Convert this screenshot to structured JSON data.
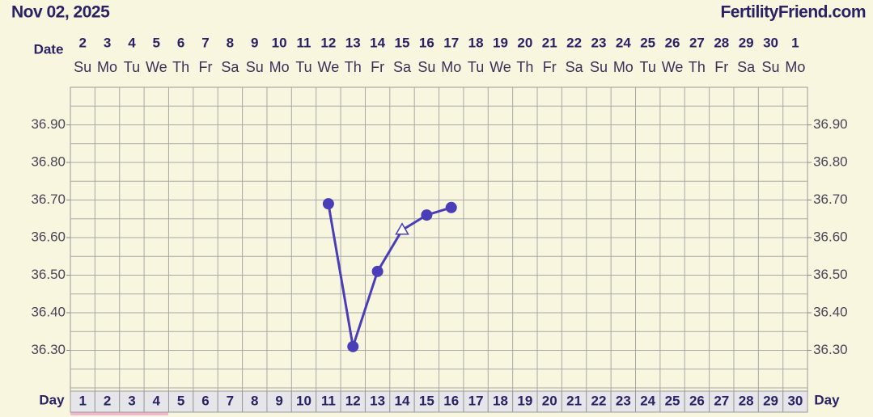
{
  "title": "Nov 02, 2025",
  "site": "FertilityFriend.com",
  "chart_data": {
    "type": "line",
    "date_label": "Date",
    "dates": [
      2,
      3,
      4,
      5,
      6,
      7,
      8,
      9,
      10,
      11,
      12,
      13,
      14,
      15,
      16,
      17,
      18,
      19,
      20,
      21,
      22,
      23,
      24,
      25,
      26,
      27,
      28,
      29,
      30,
      1
    ],
    "weekdays": [
      "Su",
      "Mo",
      "Tu",
      "We",
      "Th",
      "Fr",
      "Sa",
      "Su",
      "Mo",
      "Tu",
      "We",
      "Th",
      "Fr",
      "Sa",
      "Su",
      "Mo",
      "Tu",
      "We",
      "Th",
      "Fr",
      "Sa",
      "Su",
      "Mo",
      "Tu",
      "We",
      "Th",
      "Fr",
      "Sa",
      "Su",
      "Mo"
    ],
    "day_label": "Day",
    "categories": [
      1,
      2,
      3,
      4,
      5,
      6,
      7,
      8,
      9,
      10,
      11,
      12,
      13,
      14,
      15,
      16,
      17,
      18,
      19,
      20,
      21,
      22,
      23,
      24,
      25,
      26,
      27,
      28,
      29,
      30
    ],
    "series": [
      {
        "color": "#4a3db8",
        "values": [
          null,
          null,
          null,
          null,
          null,
          null,
          null,
          null,
          null,
          null,
          36.69,
          36.31,
          36.51,
          36.62,
          36.66,
          36.68,
          null,
          null,
          null,
          null,
          null,
          null,
          null,
          null,
          null,
          null,
          null,
          null,
          null,
          null
        ],
        "markers": [
          null,
          null,
          null,
          null,
          null,
          null,
          null,
          null,
          null,
          null,
          "circle",
          "circle",
          "circle",
          "triangle",
          "circle",
          "circle",
          null,
          null,
          null,
          null,
          null,
          null,
          null,
          null,
          null,
          null,
          null,
          null,
          null,
          null
        ]
      }
    ],
    "ylim": [
      36.2,
      37.0
    ],
    "yticks": [
      {
        "value": 36.3,
        "label": "36.30"
      },
      {
        "value": 36.4,
        "label": "36.40"
      },
      {
        "value": 36.5,
        "label": "36.50"
      },
      {
        "value": 36.6,
        "label": "36.60"
      },
      {
        "value": 36.7,
        "label": "36.70"
      },
      {
        "value": 36.8,
        "label": "36.80"
      },
      {
        "value": 36.9,
        "label": "36.90"
      }
    ],
    "grid": true
  }
}
